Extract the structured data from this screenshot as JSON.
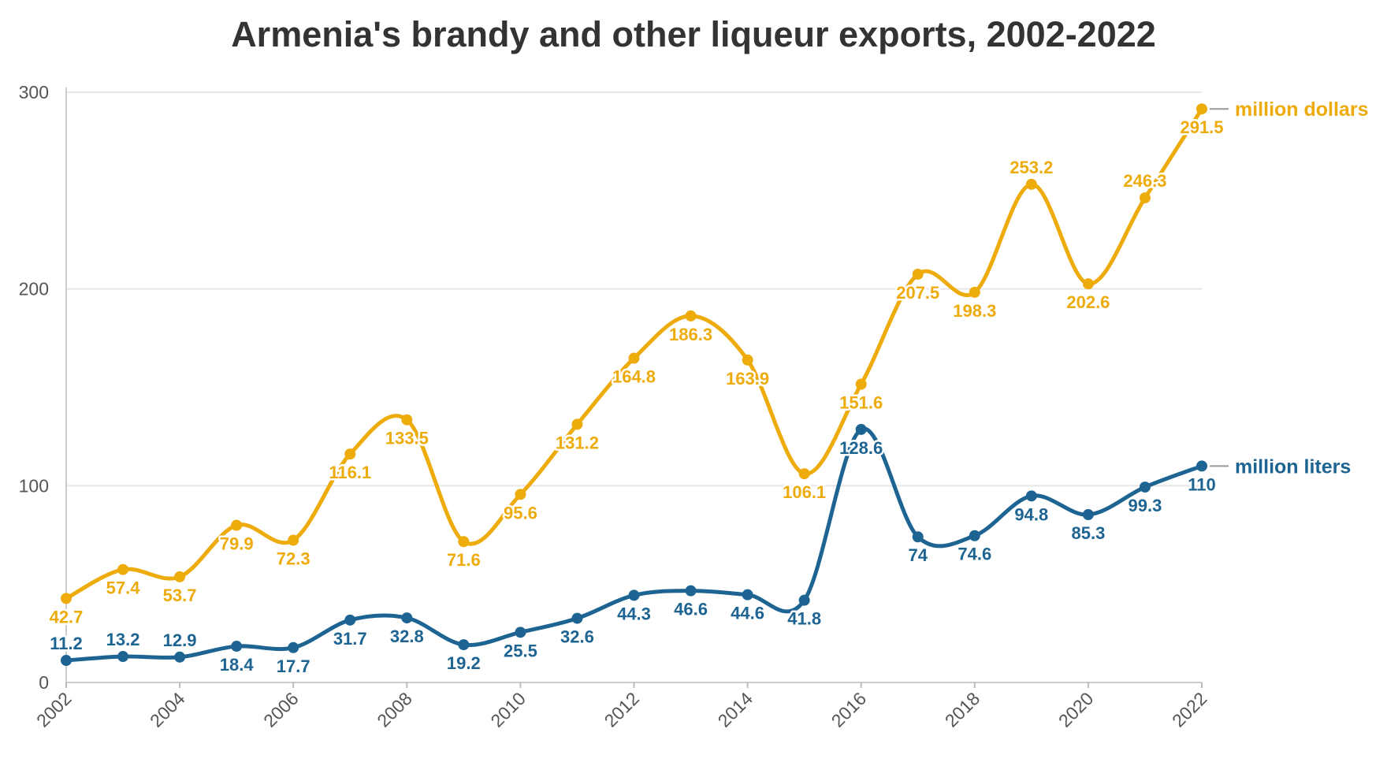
{
  "chart_data": {
    "type": "line",
    "title": "Armenia's brandy and other liqueur exports, 2002-2022",
    "xlabel": "",
    "ylabel": "",
    "x": [
      2002,
      2003,
      2004,
      2005,
      2006,
      2007,
      2008,
      2009,
      2010,
      2011,
      2012,
      2013,
      2014,
      2015,
      2016,
      2017,
      2018,
      2019,
      2020,
      2021,
      2022
    ],
    "xlim": [
      2002,
      2022
    ],
    "ylim": [
      0,
      300
    ],
    "yticks": [
      0,
      100,
      200,
      300
    ],
    "xticks": [
      "2002",
      "2004",
      "2006",
      "2008",
      "2010",
      "2012",
      "2014",
      "2016",
      "2018",
      "2020",
      "2022"
    ],
    "grid": true,
    "legend": "direct labels at right end of lines",
    "series": [
      {
        "name": "million dollars",
        "color": "#EDAB0C",
        "values": [
          42.7,
          57.4,
          53.7,
          79.9,
          72.3,
          116.1,
          133.5,
          71.6,
          95.6,
          131.2,
          164.8,
          186.3,
          163.9,
          106.1,
          151.6,
          207.5,
          198.3,
          253.2,
          202.6,
          246.3,
          291.5
        ],
        "labels": [
          "42.7",
          "57.4",
          "53.7",
          "79.9",
          "72.3",
          "116.1",
          "133.5",
          "71.6",
          "95.6",
          "131.2",
          "164.8",
          "186.3",
          "163.9",
          "106.1",
          "151.6",
          "207.5",
          "198.3",
          "253.2",
          "202.6",
          "246.3",
          "291.5"
        ]
      },
      {
        "name": "million liters",
        "color": "#1D6492",
        "values": [
          11.2,
          13.2,
          12.9,
          18.4,
          17.7,
          31.7,
          32.8,
          19.2,
          25.5,
          32.6,
          44.3,
          46.6,
          44.6,
          41.8,
          128.6,
          74,
          74.6,
          94.8,
          85.3,
          99.3,
          110
        ],
        "labels": [
          "11.2",
          "13.2",
          "12.9",
          "18.4",
          "17.7",
          "31.7",
          "32.8",
          "19.2",
          "25.5",
          "32.6",
          "44.3",
          "46.6",
          "44.6",
          "41.8",
          "128.6",
          "74",
          "74.6",
          "94.8",
          "85.3",
          "99.3",
          "110"
        ]
      }
    ]
  }
}
